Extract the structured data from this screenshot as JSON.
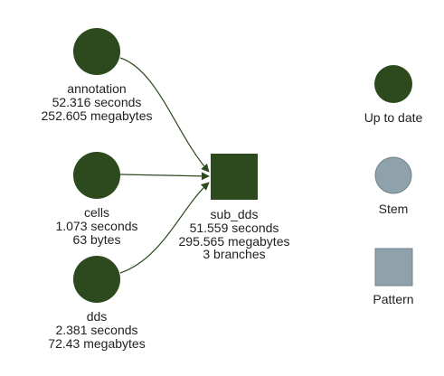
{
  "colors": {
    "up_to_date": "#2d4a1e",
    "stem": "#8fa2ab",
    "pattern": "#8fa2ab",
    "edge": "#2d4a1e",
    "text": "#222222"
  },
  "nodes": [
    {
      "id": "annotation",
      "shape": "circle",
      "status": "up_to_date",
      "name": "annotation",
      "time": "52.316 seconds",
      "size": "252.605 megabytes"
    },
    {
      "id": "cells",
      "shape": "circle",
      "status": "up_to_date",
      "name": "cells",
      "time": "1.073 seconds",
      "size": "63 bytes"
    },
    {
      "id": "dds",
      "shape": "circle",
      "status": "up_to_date",
      "name": "dds",
      "time": "2.381 seconds",
      "size": "72.43 megabytes"
    },
    {
      "id": "sub_dds",
      "shape": "square",
      "status": "up_to_date",
      "name": "sub_dds",
      "time": "51.559 seconds",
      "size": "295.565 megabytes",
      "branches": "3 branches"
    }
  ],
  "edges": [
    {
      "from": "annotation",
      "to": "sub_dds"
    },
    {
      "from": "cells",
      "to": "sub_dds"
    },
    {
      "from": "dds",
      "to": "sub_dds"
    }
  ],
  "legend": [
    {
      "shape": "circle",
      "color_key": "up_to_date",
      "label": "Up to date"
    },
    {
      "shape": "circle",
      "color_key": "stem",
      "label": "Stem"
    },
    {
      "shape": "square",
      "color_key": "pattern",
      "label": "Pattern"
    }
  ]
}
